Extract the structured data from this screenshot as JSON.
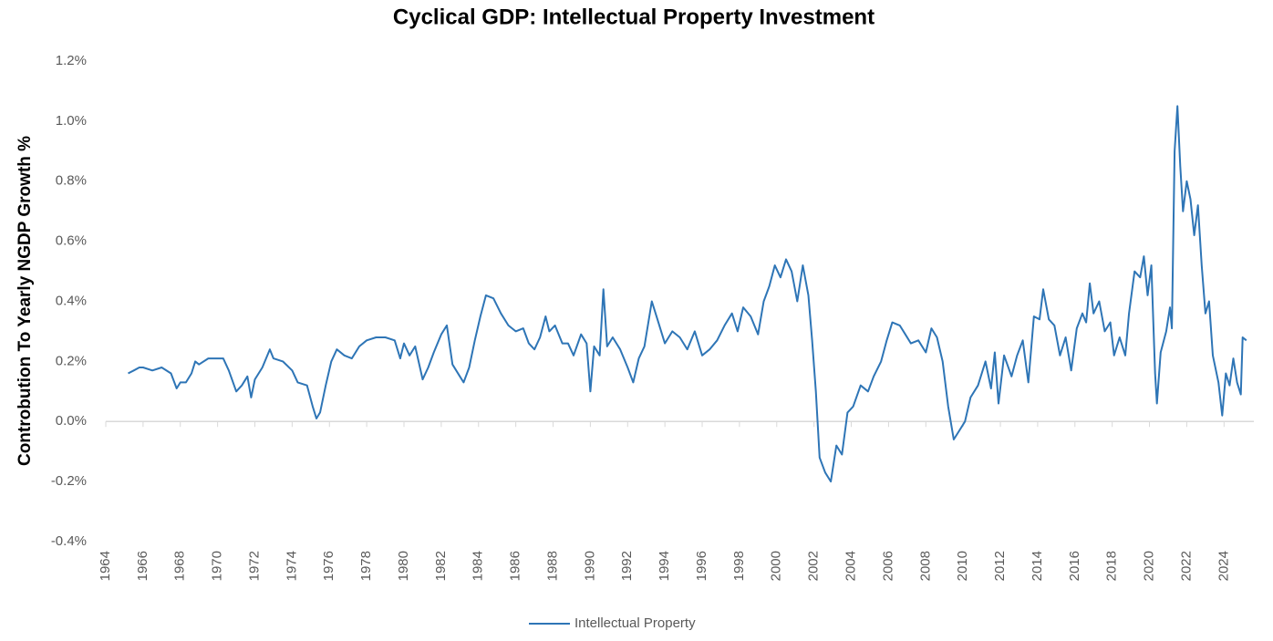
{
  "chart_data": {
    "type": "line",
    "title": "Cyclical GDP: Intellectual Property Investment",
    "y_label": "Controbution To Yearly NGDP Growth %",
    "x": [
      1965.2,
      1965.5,
      1965.8,
      1966.0,
      1966.5,
      1967.0,
      1967.5,
      1967.8,
      1968.0,
      1968.3,
      1968.6,
      1968.8,
      1969.0,
      1969.5,
      1970.0,
      1970.3,
      1970.6,
      1971.0,
      1971.3,
      1971.6,
      1971.8,
      1972.0,
      1972.4,
      1972.8,
      1973.0,
      1973.5,
      1974.0,
      1974.3,
      1974.8,
      1975.1,
      1975.3,
      1975.5,
      1975.8,
      1976.1,
      1976.4,
      1976.8,
      1977.2,
      1977.6,
      1978.0,
      1978.5,
      1979.0,
      1979.5,
      1979.8,
      1980.0,
      1980.3,
      1980.6,
      1981.0,
      1981.3,
      1981.6,
      1982.0,
      1982.3,
      1982.6,
      1983.0,
      1983.2,
      1983.5,
      1983.8,
      1984.1,
      1984.4,
      1984.8,
      1985.2,
      1985.6,
      1986.0,
      1986.4,
      1986.7,
      1987.0,
      1987.3,
      1987.6,
      1987.8,
      1988.1,
      1988.5,
      1988.8,
      1989.1,
      1989.5,
      1989.8,
      1990.0,
      1990.2,
      1990.5,
      1990.7,
      1990.9,
      1991.2,
      1991.6,
      1992.0,
      1992.3,
      1992.6,
      1992.9,
      1993.3,
      1993.6,
      1994.0,
      1994.4,
      1994.8,
      1995.2,
      1995.6,
      1996.0,
      1996.4,
      1996.8,
      1997.2,
      1997.6,
      1997.9,
      1998.2,
      1998.6,
      1999.0,
      1999.3,
      1999.6,
      1999.9,
      2000.2,
      2000.5,
      2000.8,
      2001.1,
      2001.4,
      2001.7,
      2001.9,
      2002.1,
      2002.3,
      2002.6,
      2002.9,
      2003.2,
      2003.5,
      2003.8,
      2004.1,
      2004.5,
      2004.9,
      2005.2,
      2005.6,
      2005.9,
      2006.2,
      2006.6,
      2006.9,
      2007.2,
      2007.6,
      2008.0,
      2008.3,
      2008.6,
      2008.9,
      2009.2,
      2009.5,
      2009.8,
      2010.1,
      2010.4,
      2010.8,
      2011.2,
      2011.5,
      2011.7,
      2011.9,
      2012.2,
      2012.6,
      2012.9,
      2013.2,
      2013.5,
      2013.8,
      2014.1,
      2014.3,
      2014.6,
      2014.9,
      2015.2,
      2015.5,
      2015.8,
      2016.1,
      2016.4,
      2016.6,
      2016.8,
      2017.0,
      2017.3,
      2017.6,
      2017.9,
      2018.1,
      2018.4,
      2018.7,
      2018.9,
      2019.2,
      2019.5,
      2019.7,
      2019.9,
      2020.1,
      2020.3,
      2020.4,
      2020.6,
      2020.9,
      2021.1,
      2021.2,
      2021.35,
      2021.5,
      2021.65,
      2021.8,
      2022.0,
      2022.2,
      2022.4,
      2022.6,
      2022.8,
      2023.0,
      2023.2,
      2023.4,
      2023.7,
      2023.9,
      2024.1,
      2024.3,
      2024.5,
      2024.7,
      2024.9,
      2025.0,
      2025.2
    ],
    "series": [
      {
        "name": "Intellectual Property",
        "color": "#2e75b6",
        "values": [
          0.16,
          0.17,
          0.18,
          0.18,
          0.17,
          0.18,
          0.16,
          0.11,
          0.13,
          0.13,
          0.16,
          0.2,
          0.19,
          0.21,
          0.21,
          0.21,
          0.17,
          0.1,
          0.12,
          0.15,
          0.08,
          0.14,
          0.18,
          0.24,
          0.21,
          0.2,
          0.17,
          0.13,
          0.12,
          0.05,
          0.01,
          0.03,
          0.12,
          0.2,
          0.24,
          0.22,
          0.21,
          0.25,
          0.27,
          0.28,
          0.28,
          0.27,
          0.21,
          0.26,
          0.22,
          0.25,
          0.14,
          0.18,
          0.23,
          0.29,
          0.32,
          0.19,
          0.15,
          0.13,
          0.18,
          0.27,
          0.35,
          0.42,
          0.41,
          0.36,
          0.32,
          0.3,
          0.31,
          0.26,
          0.24,
          0.28,
          0.35,
          0.3,
          0.32,
          0.26,
          0.26,
          0.22,
          0.29,
          0.26,
          0.1,
          0.25,
          0.22,
          0.44,
          0.25,
          0.28,
          0.24,
          0.18,
          0.13,
          0.21,
          0.25,
          0.4,
          0.34,
          0.26,
          0.3,
          0.28,
          0.24,
          0.3,
          0.22,
          0.24,
          0.27,
          0.32,
          0.36,
          0.3,
          0.38,
          0.35,
          0.29,
          0.4,
          0.45,
          0.52,
          0.48,
          0.54,
          0.5,
          0.4,
          0.52,
          0.42,
          0.27,
          0.1,
          -0.12,
          -0.17,
          -0.2,
          -0.08,
          -0.11,
          0.03,
          0.05,
          0.12,
          0.1,
          0.15,
          0.2,
          0.27,
          0.33,
          0.32,
          0.29,
          0.26,
          0.27,
          0.23,
          0.31,
          0.28,
          0.2,
          0.05,
          -0.06,
          -0.03,
          0.0,
          0.08,
          0.12,
          0.2,
          0.11,
          0.23,
          0.06,
          0.22,
          0.15,
          0.22,
          0.27,
          0.13,
          0.35,
          0.34,
          0.44,
          0.34,
          0.32,
          0.22,
          0.28,
          0.17,
          0.31,
          0.36,
          0.33,
          0.46,
          0.36,
          0.4,
          0.3,
          0.33,
          0.22,
          0.28,
          0.22,
          0.36,
          0.5,
          0.48,
          0.55,
          0.42,
          0.52,
          0.16,
          0.06,
          0.23,
          0.3,
          0.38,
          0.31,
          0.9,
          1.05,
          0.85,
          0.7,
          0.8,
          0.74,
          0.62,
          0.72,
          0.52,
          0.36,
          0.4,
          0.22,
          0.13,
          0.02,
          0.16,
          0.12,
          0.21,
          0.13,
          0.09,
          0.28,
          0.27
        ]
      }
    ],
    "xlim": [
      1964,
      2025.6
    ],
    "xticks": [
      1964,
      1966,
      1968,
      1970,
      1972,
      1974,
      1976,
      1978,
      1980,
      1982,
      1984,
      1986,
      1988,
      1990,
      1992,
      1994,
      1996,
      1998,
      2000,
      2002,
      2004,
      2006,
      2008,
      2010,
      2012,
      2014,
      2016,
      2018,
      2020,
      2022,
      2024
    ],
    "ylim": [
      -0.4,
      1.2
    ],
    "yticks": [
      {
        "value": -0.4,
        "label": "-0.4%"
      },
      {
        "value": -0.2,
        "label": "-0.2%"
      },
      {
        "value": 0,
        "label": "0.0%"
      },
      {
        "value": 0.2,
        "label": "0.2%"
      },
      {
        "value": 0.4,
        "label": "0.4%"
      },
      {
        "value": 0.6,
        "label": "0.6%"
      },
      {
        "value": 0.8,
        "label": "0.8%"
      },
      {
        "value": 1.0,
        "label": "1.0%"
      },
      {
        "value": 1.2,
        "label": "1.2%"
      }
    ],
    "legend": "bottom"
  }
}
